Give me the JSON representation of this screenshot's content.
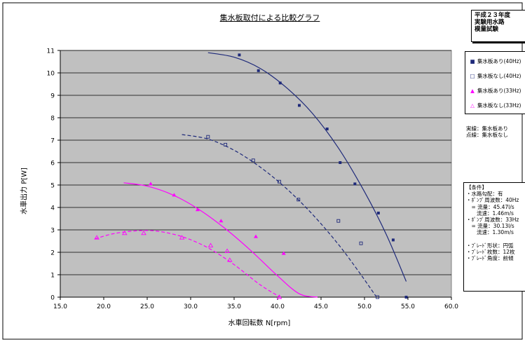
{
  "header_box": {
    "lines": [
      "平成２３年度",
      "実験用水路",
      "模量試験"
    ]
  },
  "legend": {
    "items": [
      {
        "label": "集水板あり(40Hz)",
        "marker": "■",
        "color": "#1f2a7a"
      },
      {
        "label": "集水板なし(40Hz)",
        "marker": "□",
        "color": "#1f2a7a"
      },
      {
        "label": "集水板あり(33Hz)",
        "marker": "▲",
        "color": "#ff00ff"
      },
      {
        "label": "集水板なし(33Hz)",
        "marker": "△",
        "color": "#ff00ff"
      }
    ]
  },
  "line_note": [
    "実線：集水板あり",
    "点線：集水板なし"
  ],
  "conditions": {
    "lines": [
      "【条件】",
      "・水路勾配：有",
      "・ﾎﾟﾝﾌﾟ周波数：40Hz",
      "　= 流量：45.47l/s",
      "　　流速：1.46m/s",
      "・ﾎﾟﾝﾌﾟ周波数：33Hz",
      "　= 流量：30.13l/s",
      "　　流速：1.30m/s",
      "",
      "・ﾌﾞﾚｰﾄﾞ形状：円弧",
      "・ﾌﾞﾚｰﾄﾞ枚数：12枚",
      "・ﾌﾞﾚｰﾄﾞ角度：前傾"
    ]
  },
  "chart_data": {
    "type": "scatter",
    "title": "集水板取付による比較グラフ",
    "xlabel": "水車回転数 N[rpm]",
    "ylabel": "水車出力 P[W]",
    "xlim": [
      15.0,
      60.0
    ],
    "ylim": [
      0,
      11
    ],
    "x_ticks": [
      "15.0",
      "20.0",
      "25.0",
      "30.0",
      "35.0",
      "40.0",
      "45.0",
      "50.0",
      "55.0",
      "60.0"
    ],
    "y_ticks": [
      "0",
      "1",
      "2",
      "3",
      "4",
      "5",
      "6",
      "7",
      "8",
      "9",
      "10",
      "11"
    ],
    "grid": true,
    "plot_background": "#c0c0c0",
    "series": [
      {
        "name": "集水板あり(40Hz)",
        "marker": "filled-square",
        "color": "#1f2a7a",
        "line": "solid",
        "points": [
          [
            35.6,
            10.8
          ],
          [
            37.8,
            10.1
          ],
          [
            40.3,
            9.55
          ],
          [
            42.5,
            8.55
          ],
          [
            45.7,
            7.5
          ],
          [
            47.2,
            6.0
          ],
          [
            48.9,
            5.05
          ],
          [
            51.6,
            3.75
          ],
          [
            53.3,
            2.55
          ],
          [
            54.8,
            0.0
          ]
        ],
        "trend": [
          [
            32.0,
            10.9
          ],
          [
            35.0,
            10.7
          ],
          [
            38.0,
            10.2
          ],
          [
            41.0,
            9.35
          ],
          [
            44.0,
            8.2
          ],
          [
            47.0,
            6.65
          ],
          [
            50.0,
            4.7
          ],
          [
            52.5,
            2.8
          ],
          [
            54.8,
            0.7
          ]
        ]
      },
      {
        "name": "集水板なし(40Hz)",
        "marker": "open-square",
        "color": "#1f2a7a",
        "line": "dashed",
        "points": [
          [
            32.0,
            7.15
          ],
          [
            34.0,
            6.8
          ],
          [
            37.2,
            6.1
          ],
          [
            40.2,
            5.15
          ],
          [
            42.4,
            4.35
          ],
          [
            47.0,
            3.4
          ],
          [
            49.6,
            2.4
          ],
          [
            51.5,
            0.0
          ]
        ],
        "trend": [
          [
            29.0,
            7.25
          ],
          [
            32.0,
            7.05
          ],
          [
            35.0,
            6.55
          ],
          [
            38.0,
            5.8
          ],
          [
            41.0,
            4.85
          ],
          [
            44.0,
            3.7
          ],
          [
            47.0,
            2.35
          ],
          [
            49.5,
            1.05
          ],
          [
            51.3,
            0.05
          ]
        ]
      },
      {
        "name": "集水板あり(33Hz)",
        "marker": "filled-triangle",
        "color": "#ff00ff",
        "line": "solid",
        "points": [
          [
            25.4,
            5.05
          ],
          [
            28.1,
            4.55
          ],
          [
            30.8,
            3.9
          ],
          [
            33.5,
            3.4
          ],
          [
            37.5,
            2.7
          ],
          [
            40.7,
            1.95
          ]
        ],
        "trend": [
          [
            22.3,
            5.1
          ],
          [
            25.0,
            4.95
          ],
          [
            28.0,
            4.55
          ],
          [
            31.0,
            3.9
          ],
          [
            34.0,
            3.05
          ],
          [
            37.0,
            2.05
          ],
          [
            40.0,
            0.95
          ],
          [
            42.5,
            0.15
          ],
          [
            44.6,
            0.0
          ]
        ]
      },
      {
        "name": "集水板なし(33Hz)",
        "marker": "open-triangle",
        "color": "#ff00ff",
        "line": "dashed",
        "points": [
          [
            19.2,
            2.65
          ],
          [
            22.4,
            2.85
          ],
          [
            24.6,
            2.85
          ],
          [
            29.0,
            2.65
          ],
          [
            32.3,
            2.3
          ],
          [
            34.2,
            2.05
          ],
          [
            34.5,
            1.65
          ],
          [
            40.2,
            0.0
          ]
        ],
        "trend": [
          [
            19.0,
            2.6
          ],
          [
            21.0,
            2.82
          ],
          [
            23.5,
            2.95
          ],
          [
            26.0,
            2.95
          ],
          [
            29.0,
            2.7
          ],
          [
            32.0,
            2.2
          ],
          [
            35.0,
            1.45
          ],
          [
            38.0,
            0.55
          ],
          [
            40.3,
            0.0
          ]
        ]
      }
    ]
  }
}
